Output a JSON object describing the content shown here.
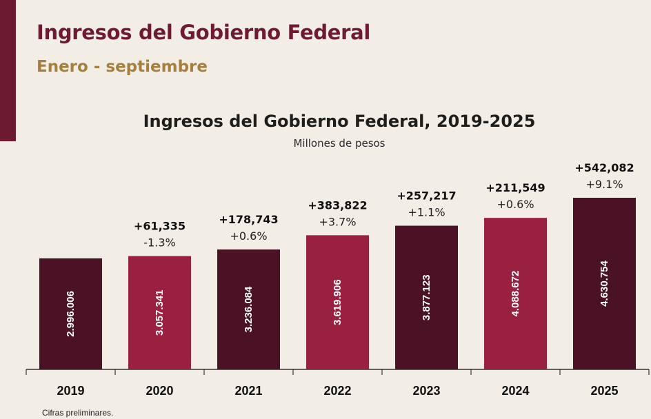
{
  "header": {
    "title": "Ingresos del Gobierno Federal",
    "subtitle": "Enero - septiembre"
  },
  "colors": {
    "dark": "#4b1125",
    "red": "#9a2040",
    "sidebar": "#6b1a30"
  },
  "chart_data": {
    "type": "bar",
    "title": "Ingresos del Gobierno Federal, 2019-2025",
    "ylabel": "Millones de pesos",
    "categories": [
      "2019",
      "2020",
      "2021",
      "2022",
      "2023",
      "2024",
      "2025"
    ],
    "values": [
      2996006,
      3057341,
      3236084,
      3619906,
      3877123,
      4088672,
      4630754
    ],
    "value_labels": [
      "2.996.006",
      "3.057.341",
      "3.236.084",
      "3.619.906",
      "3.877.123",
      "4.088.672",
      "4.630.754"
    ],
    "diff_labels": [
      "",
      "+61,335",
      "+178,743",
      "+383,822",
      "+257,217",
      "+211,549",
      "+542,082"
    ],
    "pct_labels": [
      "",
      "-1.3%",
      "+0.6%",
      "+3.7%",
      "+1.1%",
      "+0.6%",
      "+9.1%"
    ],
    "bar_colors": [
      "dark",
      "red",
      "dark",
      "red",
      "dark",
      "red",
      "dark"
    ],
    "ylim": [
      0,
      4630754
    ],
    "grid": false
  },
  "footnote": "Cifras preliminares."
}
